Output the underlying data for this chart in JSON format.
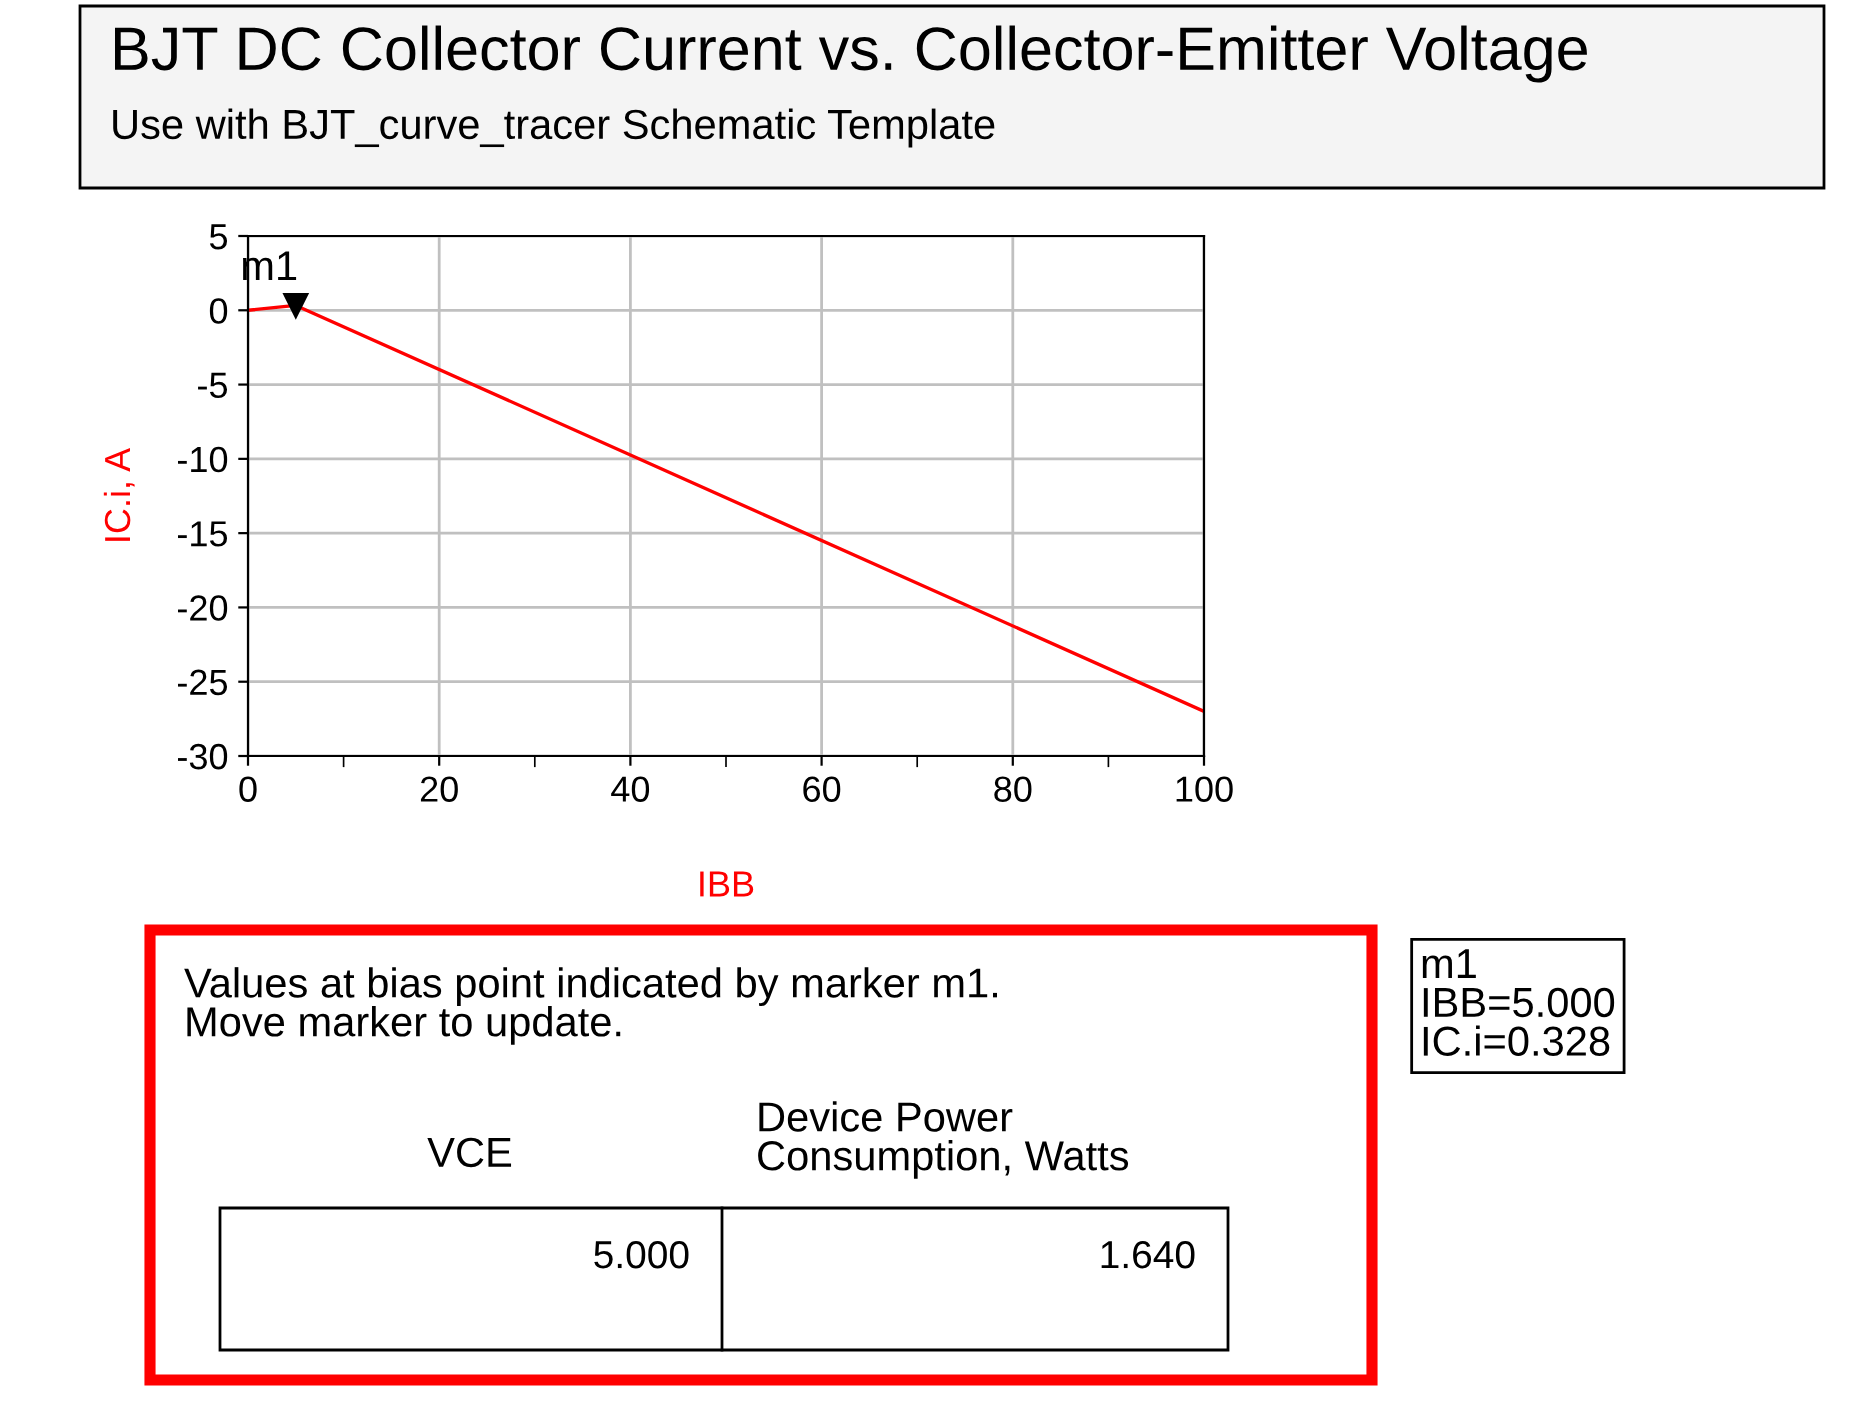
{
  "chart_data": {
    "type": "line",
    "title": "BJT DC Collector Current vs. Collector-Emitter Voltage",
    "subtitle": "Use with BJT_curve_tracer Schematic Template",
    "xlabel": "IBB",
    "ylabel": "IC.i, A",
    "series": [
      {
        "color": "#ff0000",
        "x": [
          0,
          5,
          100
        ],
        "values": [
          0,
          0.328,
          -27.0
        ]
      }
    ],
    "xlim": [
      0,
      100
    ],
    "ylim": [
      -30,
      5
    ],
    "xticks": [
      0,
      {
        "value": 10,
        "label": null
      },
      20,
      {
        "value": 30,
        "label": null
      },
      40,
      {
        "value": 50,
        "label": null
      },
      60,
      {
        "value": 70,
        "label": null
      },
      80,
      {
        "value": 90,
        "label": null
      },
      100
    ],
    "yticks": [
      -30,
      -25,
      -20,
      -15,
      -10,
      -5,
      0,
      5
    ],
    "grid": true,
    "line_style": "solid",
    "marker": "none",
    "annotations": [
      {
        "text": "m1",
        "x": 5,
        "y": 0.328
      },
      "m1\nIBB=5.000\nIC.i=0.328",
      "Values at bias point indicated by marker m1.\nMove marker to update.",
      "VCE",
      "Device Power\nConsumption, Watts",
      "5.000",
      "1.640"
    ]
  }
}
